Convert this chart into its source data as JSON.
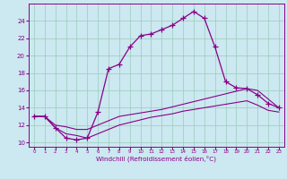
{
  "xlabel": "Windchill (Refroidissement éolien,°C)",
  "bg_color": "#cce8f0",
  "grid_color": "#99ccbb",
  "line_color": "#880088",
  "xlim": [
    -0.5,
    23.5
  ],
  "ylim": [
    9.5,
    26.0
  ],
  "xticks": [
    0,
    1,
    2,
    3,
    4,
    5,
    6,
    7,
    8,
    9,
    10,
    11,
    12,
    13,
    14,
    15,
    16,
    17,
    18,
    19,
    20,
    21,
    22,
    23
  ],
  "yticks": [
    10,
    12,
    14,
    16,
    18,
    20,
    22,
    24
  ],
  "line1_x": [
    0,
    1,
    2,
    3,
    4,
    5,
    6,
    7,
    8,
    9,
    10,
    11,
    12,
    13,
    14,
    15,
    16,
    17,
    18,
    19,
    20,
    21,
    22,
    23
  ],
  "line1_y": [
    13.0,
    13.0,
    11.7,
    10.5,
    10.3,
    10.5,
    13.5,
    18.5,
    19.0,
    21.0,
    22.3,
    22.5,
    23.0,
    23.5,
    24.3,
    25.1,
    24.3,
    21.0,
    17.0,
    16.3,
    16.2,
    15.5,
    14.5,
    14.0
  ],
  "line2_x": [
    0,
    1,
    2,
    3,
    4,
    5,
    6,
    7,
    8,
    9,
    10,
    11,
    12,
    13,
    14,
    15,
    16,
    17,
    18,
    19,
    20,
    21,
    22,
    23
  ],
  "line2_y": [
    13.0,
    13.0,
    12.0,
    11.8,
    11.5,
    11.5,
    12.0,
    12.5,
    13.0,
    13.2,
    13.4,
    13.6,
    13.8,
    14.1,
    14.4,
    14.7,
    15.0,
    15.3,
    15.6,
    15.9,
    16.2,
    16.0,
    15.0,
    14.0
  ],
  "line3_x": [
    0,
    1,
    2,
    3,
    4,
    5,
    6,
    7,
    8,
    9,
    10,
    11,
    12,
    13,
    14,
    15,
    16,
    17,
    18,
    19,
    20,
    21,
    22,
    23
  ],
  "line3_y": [
    13.0,
    13.0,
    11.7,
    11.0,
    10.8,
    10.5,
    11.0,
    11.5,
    12.0,
    12.3,
    12.6,
    12.9,
    13.1,
    13.3,
    13.6,
    13.8,
    14.0,
    14.2,
    14.4,
    14.6,
    14.8,
    14.3,
    13.7,
    13.5
  ]
}
